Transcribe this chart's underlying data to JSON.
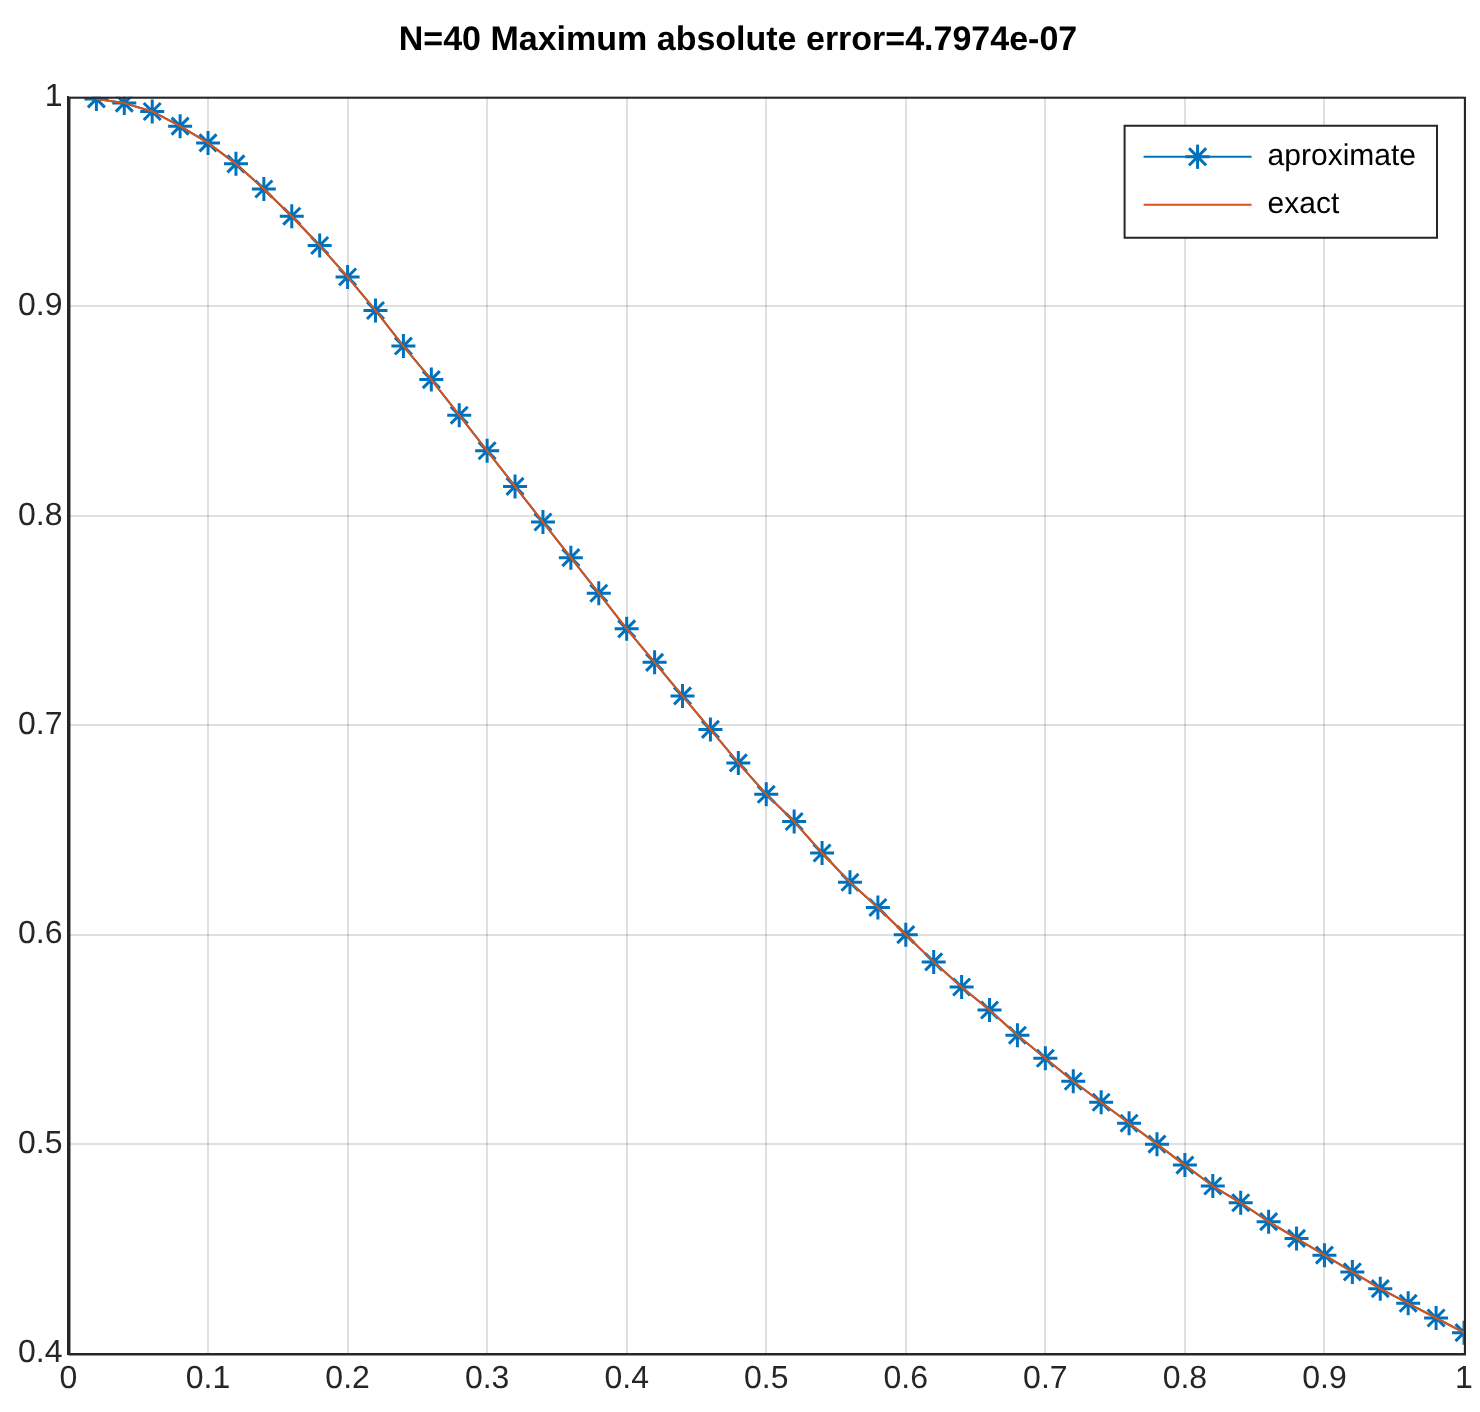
{
  "chart_data": {
    "type": "line",
    "title": "N=40 Maximum absolute error=4.7974e-07",
    "x": [
      0.02,
      0.04,
      0.06,
      0.08,
      0.1,
      0.12,
      0.14,
      0.16,
      0.18,
      0.2,
      0.22,
      0.24,
      0.26,
      0.28,
      0.3,
      0.32,
      0.34,
      0.36,
      0.38,
      0.4,
      0.42,
      0.44,
      0.46,
      0.48,
      0.5,
      0.52,
      0.54,
      0.56,
      0.58,
      0.6,
      0.62,
      0.64,
      0.66,
      0.68,
      0.7,
      0.72,
      0.74,
      0.76,
      0.78,
      0.8,
      0.82,
      0.84,
      0.86,
      0.88,
      0.9,
      0.92,
      0.94,
      0.96,
      0.98,
      1.0
    ],
    "series": [
      {
        "name": "aproximate",
        "color": "#0072bd",
        "marker": "cross",
        "values": [
          0.999,
          0.997,
          0.993,
          0.986,
          0.978,
          0.968,
          0.956,
          0.943,
          0.929,
          0.914,
          0.898,
          0.881,
          0.865,
          0.848,
          0.831,
          0.814,
          0.797,
          0.78,
          0.763,
          0.746,
          0.73,
          0.714,
          0.698,
          0.682,
          0.667,
          0.654,
          0.639,
          0.625,
          0.613,
          0.6,
          0.587,
          0.575,
          0.564,
          0.552,
          0.541,
          0.53,
          0.52,
          0.51,
          0.5,
          0.49,
          0.48,
          0.472,
          0.463,
          0.455,
          0.447,
          0.439,
          0.431,
          0.424,
          0.417,
          0.41
        ]
      },
      {
        "name": "exact",
        "color": "#d95319",
        "marker": "none",
        "values": [
          0.999,
          0.997,
          0.993,
          0.986,
          0.978,
          0.968,
          0.956,
          0.943,
          0.929,
          0.914,
          0.898,
          0.881,
          0.865,
          0.848,
          0.831,
          0.814,
          0.797,
          0.78,
          0.763,
          0.746,
          0.73,
          0.714,
          0.698,
          0.682,
          0.667,
          0.654,
          0.639,
          0.625,
          0.613,
          0.6,
          0.587,
          0.575,
          0.564,
          0.552,
          0.541,
          0.53,
          0.52,
          0.51,
          0.5,
          0.49,
          0.48,
          0.472,
          0.463,
          0.455,
          0.447,
          0.439,
          0.431,
          0.424,
          0.417,
          0.41
        ]
      }
    ],
    "xlim": [
      0,
      1
    ],
    "xticks": [
      0,
      0.1,
      0.2,
      0.3,
      0.4,
      0.5,
      0.6,
      0.7,
      0.8,
      0.9,
      1
    ],
    "ylim": [
      0.4,
      1
    ],
    "yticks": [
      0.4,
      0.5,
      0.6,
      0.7,
      0.8,
      0.9,
      1
    ],
    "grid": true,
    "legend": "top right",
    "line_style": "solid"
  }
}
